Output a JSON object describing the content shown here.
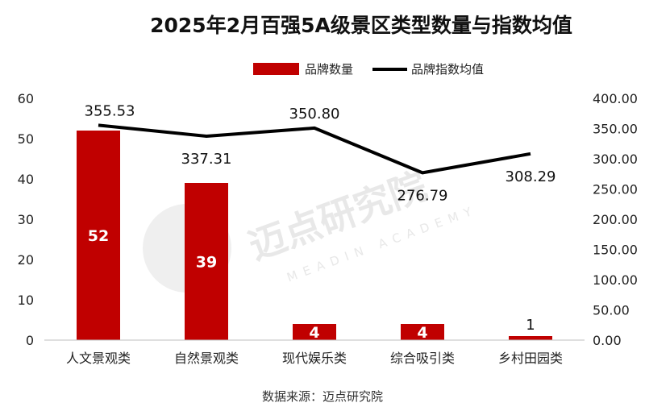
{
  "title": "2025年2月百强5A级景区类型数量与指数均值",
  "source": "数据来源：迈点研究院",
  "watermark": {
    "main": "迈点研究院",
    "sub": "MEADIN ACADEMY"
  },
  "colors": {
    "bar": "#c00000",
    "line": "#000000",
    "axis": "#bfbfbf"
  },
  "chart_data": {
    "type": "bar",
    "categories": [
      "人文景观类",
      "自然景观类",
      "现代娱乐类",
      "综合吸引类",
      "乡村田园类"
    ],
    "series": [
      {
        "name": "品牌数量",
        "type": "bar",
        "axis": "left",
        "values": [
          52,
          39,
          4,
          4,
          1
        ],
        "labels": [
          "52",
          "39",
          "4",
          "4",
          "1"
        ]
      },
      {
        "name": "品牌指数均值",
        "type": "line",
        "axis": "right",
        "values": [
          355.53,
          337.31,
          350.8,
          276.79,
          308.29
        ],
        "labels": [
          "355.53",
          "337.31",
          "350.80",
          "276.79",
          "308.29"
        ]
      }
    ],
    "y_left": {
      "min": 0,
      "max": 60,
      "ticks": [
        "0",
        "10",
        "20",
        "30",
        "40",
        "50",
        "60"
      ]
    },
    "y_right": {
      "min": 0,
      "max": 400,
      "ticks": [
        "0.00",
        "50.00",
        "100.00",
        "150.00",
        "200.00",
        "250.00",
        "300.00",
        "350.00",
        "400.00"
      ]
    },
    "legend_position": "top-right",
    "grid": false
  }
}
